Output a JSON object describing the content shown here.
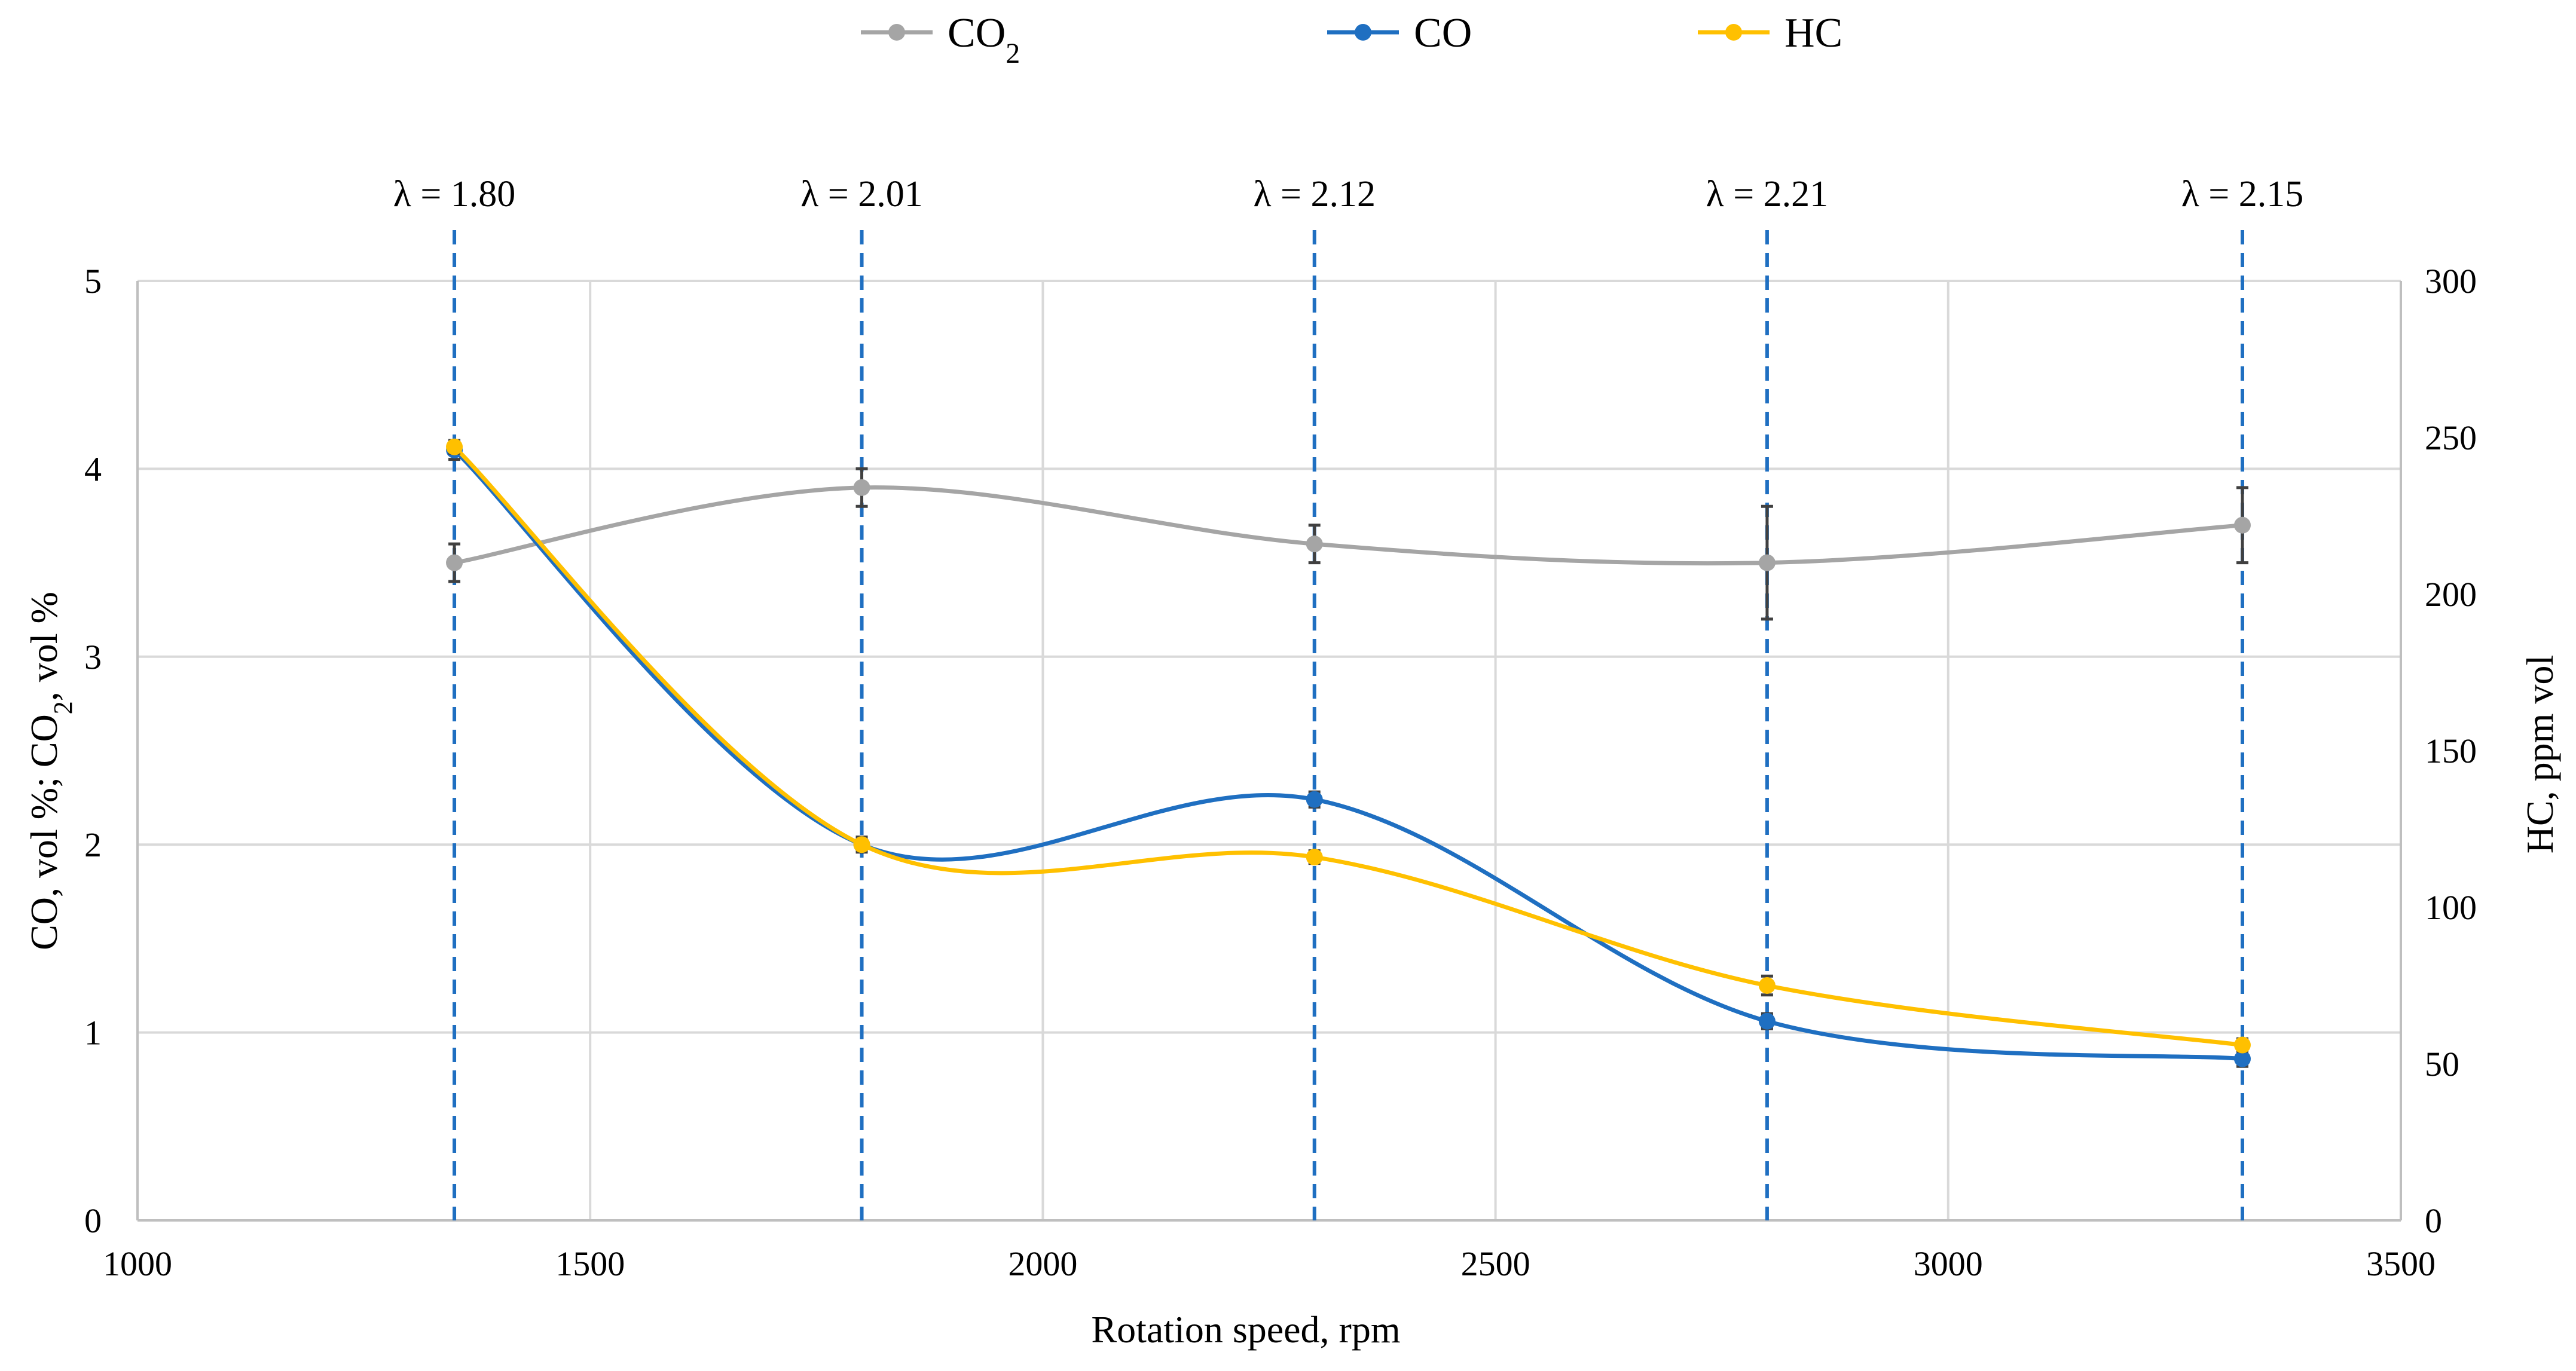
{
  "chart_data": {
    "type": "line",
    "xlabel": "Rotation speed, rpm",
    "ylabel": "CO, vol %; CO₂, vol %",
    "y2label": "HC, ppm vol",
    "xlim": [
      1000,
      3500
    ],
    "ylim": [
      0,
      5
    ],
    "y2lim": [
      0,
      300
    ],
    "xticks": [
      "1000",
      "1500",
      "2000",
      "2500",
      "3000",
      "3500"
    ],
    "yticks": [
      "0",
      "1",
      "2",
      "3",
      "4",
      "5"
    ],
    "y2ticks": [
      "0",
      "50",
      "100",
      "150",
      "200",
      "250",
      "300"
    ],
    "grid": true,
    "legend_position": "top-center",
    "x": [
      1350,
      1800,
      2300,
      2800,
      3325
    ],
    "lambda_lines": [
      {
        "x": 1350,
        "label": "λ = 1.80"
      },
      {
        "x": 1800,
        "label": "λ = 2.01"
      },
      {
        "x": 2300,
        "label": "λ = 2.12"
      },
      {
        "x": 2800,
        "label": "λ = 2.21"
      },
      {
        "x": 3325,
        "label": "λ = 2.15"
      }
    ],
    "lambda_line_color": "#1f6fc1",
    "series": [
      {
        "name": "CO",
        "name_sub": "2",
        "axis": "left",
        "color": "#a5a5a5",
        "values": [
          3.5,
          3.9,
          3.6,
          3.5,
          3.7
        ],
        "errors": [
          0.1,
          0.1,
          0.1,
          0.3,
          0.2
        ]
      },
      {
        "name": "CO",
        "axis": "left",
        "color": "#1f6fc1",
        "values": [
          4.1,
          2.0,
          2.24,
          1.06,
          0.86
        ],
        "errors": [
          0.05,
          0.04,
          0.04,
          0.04,
          0.04
        ]
      },
      {
        "name": "HC",
        "axis": "right",
        "color": "#ffc000",
        "values": [
          247,
          120,
          116,
          75,
          56
        ],
        "errors": [
          2,
          2,
          2,
          3,
          2
        ]
      }
    ]
  }
}
